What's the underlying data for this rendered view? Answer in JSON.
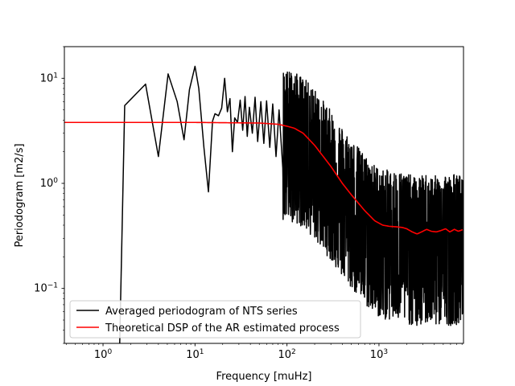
{
  "chart_data": {
    "type": "line",
    "title": "",
    "xlabel": "Frequency [muHz]",
    "ylabel": "Periodogram [m2/s]",
    "x_scale": "log",
    "y_scale": "log",
    "xlim": [
      0.38,
      8300
    ],
    "ylim": [
      0.03,
      20
    ],
    "x_ticks": [
      {
        "value": 1,
        "base": "10",
        "exp": "0"
      },
      {
        "value": 10,
        "base": "10",
        "exp": "1"
      },
      {
        "value": 100,
        "base": "10",
        "exp": "2"
      },
      {
        "value": 1000,
        "base": "10",
        "exp": "3"
      }
    ],
    "y_ticks": [
      {
        "value": 0.1,
        "base": "10",
        "exp": "−1"
      },
      {
        "value": 1,
        "base": "10",
        "exp": "0"
      },
      {
        "value": 10,
        "base": "10",
        "exp": "1"
      }
    ],
    "grid": false,
    "legend_position": "lower-left",
    "series": [
      {
        "name": "Averaged periodogram of NTS series",
        "color": "#000000",
        "x": [
          1.5,
          1.72,
          2.9,
          4.0,
          5.1,
          6.4,
          7.6,
          8.7,
          10.0,
          11.0,
          12.5,
          14.0,
          15.5,
          16.5,
          18.0,
          19.5,
          21.0,
          22.5,
          24.0,
          25.5,
          27.0,
          29.0,
          31.0,
          33.0,
          35.0,
          37.0,
          39.0,
          42.0,
          45.0,
          48.0,
          52.0,
          56.0,
          60.0,
          65.0,
          70.0,
          76.0,
          82.0,
          90.0
        ],
        "values": [
          0.018,
          5.5,
          8.8,
          1.8,
          11.0,
          6.0,
          2.6,
          7.8,
          13.0,
          8.0,
          2.2,
          0.83,
          3.9,
          4.6,
          4.4,
          5.2,
          10.0,
          4.8,
          6.4,
          2.0,
          4.2,
          3.8,
          6.2,
          3.2,
          6.7,
          2.8,
          5.3,
          3.0,
          6.6,
          2.5,
          6.0,
          2.4,
          6.1,
          2.2,
          5.7,
          1.8,
          5.0,
          1.4
        ]
      },
      {
        "name": "Theoretical DSP of the AR estimated process",
        "color": "#ff0000",
        "x": [
          0.38,
          10,
          50,
          80,
          100,
          120,
          150,
          200,
          300,
          400,
          500,
          700,
          900,
          1100,
          1300,
          1600,
          1800,
          2000,
          2300,
          2600,
          2900,
          3300,
          3700,
          4200,
          4700,
          5300,
          5900,
          6600,
          7300,
          8300
        ],
        "values": [
          3.8,
          3.8,
          3.75,
          3.65,
          3.5,
          3.35,
          3.0,
          2.3,
          1.45,
          1.0,
          0.78,
          0.55,
          0.44,
          0.4,
          0.39,
          0.385,
          0.38,
          0.37,
          0.345,
          0.33,
          0.345,
          0.365,
          0.35,
          0.345,
          0.355,
          0.37,
          0.345,
          0.365,
          0.35,
          0.365
        ]
      }
    ]
  }
}
